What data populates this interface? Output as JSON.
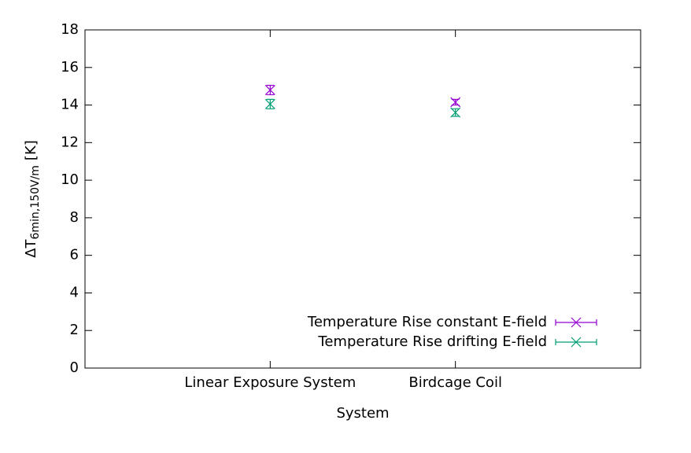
{
  "chart_data": {
    "type": "errorbar",
    "ylabel": [
      "ΔT",
      "6min,150V/m",
      "[K]"
    ],
    "xlabel": "System",
    "categories": [
      "Linear Exposure System",
      "Birdcage Coil"
    ],
    "series": [
      {
        "name": "Temperature Rise constant E-field",
        "color": "#9400d3",
        "values": [
          14.8,
          14.15
        ],
        "errors": [
          0.25,
          0.15
        ]
      },
      {
        "name": "Temperature Rise drifting E-field",
        "color": "#009e73",
        "values": [
          14.05,
          13.6
        ],
        "errors": [
          0.25,
          0.2
        ]
      }
    ],
    "ylim": [
      0,
      18
    ],
    "yticks": [
      0,
      2,
      4,
      6,
      8,
      10,
      12,
      14,
      16,
      18
    ],
    "legend": "bottom right",
    "grid": false
  }
}
